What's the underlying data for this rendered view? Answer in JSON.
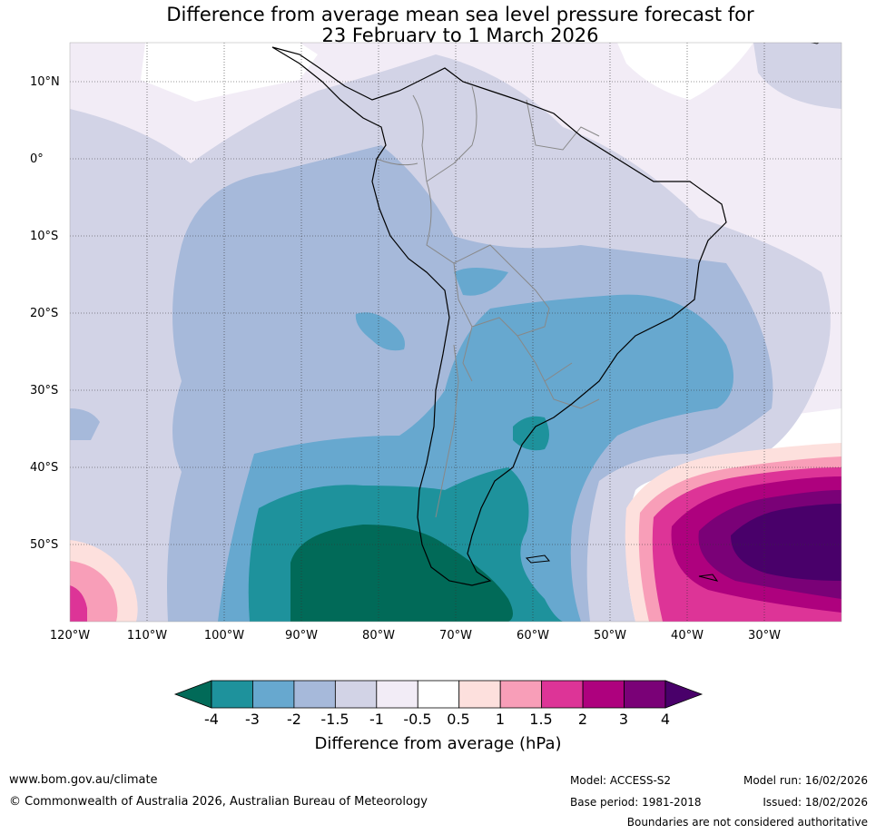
{
  "title_line1": "Difference from average mean sea level pressure forecast for",
  "title_line2": "23 February to 1 March 2026",
  "lat_labels": [
    "10°N",
    "0°",
    "10°S",
    "20°S",
    "30°S",
    "40°S",
    "50°S"
  ],
  "lon_labels": [
    "120°W",
    "110°W",
    "100°W",
    "90°W",
    "80°W",
    "70°W",
    "60°W",
    "50°W",
    "40°W",
    "30°W"
  ],
  "colorbar": {
    "ticks": [
      "-4",
      "-3",
      "-2",
      "-1.5",
      "-1",
      "-0.5",
      "0.5",
      "1",
      "1.5",
      "2",
      "3",
      "4"
    ],
    "colors": [
      "#016a58",
      "#1e929c",
      "#67a8cf",
      "#a6b9da",
      "#d2d3e6",
      "#f2ecf6",
      "#ffffff",
      "#fde0dd",
      "#f89eb8",
      "#dd3497",
      "#ae017e",
      "#7a0177",
      "#49006a"
    ],
    "label": "Difference from average (hPa)"
  },
  "footer": {
    "website": "www.bom.gov.au/climate",
    "copyright": "© Commonwealth of Australia 2026, Australian Bureau of Meteorology",
    "model": "Model: ACCESS-S2",
    "base_period": "Base period: 1981-2018",
    "model_run": "Model run: 16/02/2026",
    "issued": "Issued: 18/02/2026",
    "disclaimer": "Boundaries are not considered authoritative"
  }
}
